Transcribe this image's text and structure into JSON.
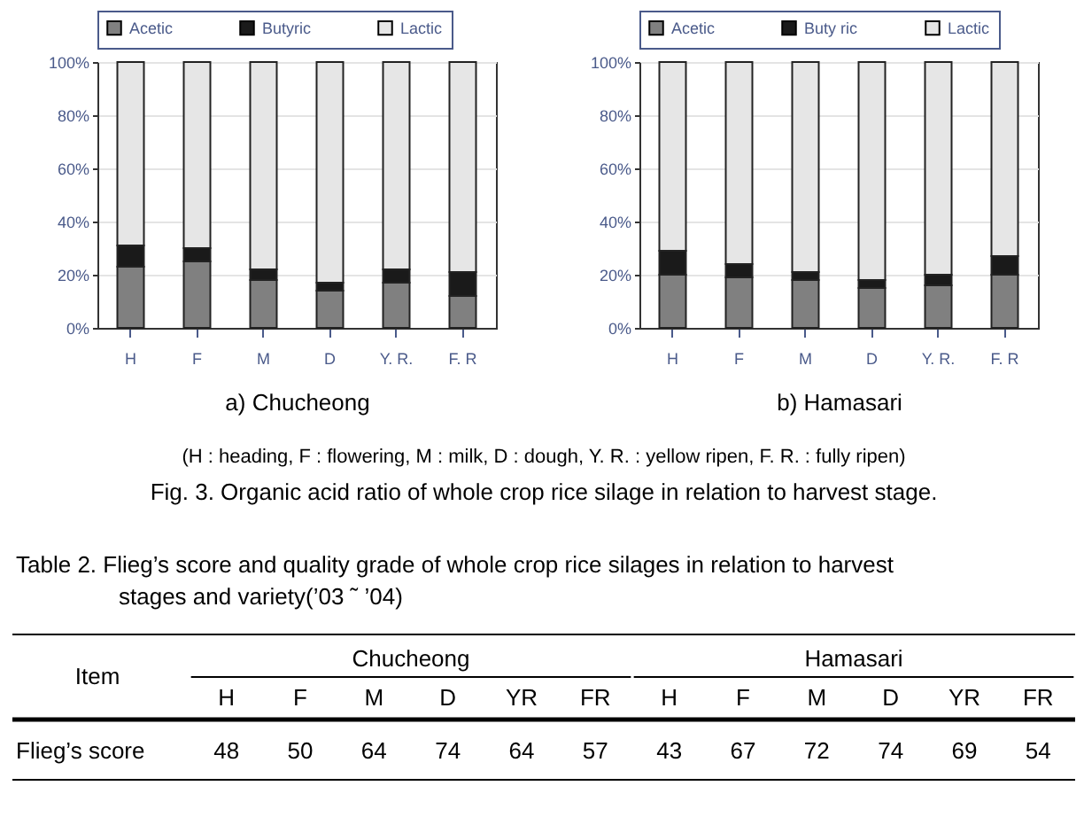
{
  "chart_data": [
    {
      "type": "bar",
      "stacked": true,
      "xlabel": "a)  Chucheong",
      "categories": [
        "H",
        "F",
        "M",
        "D",
        "Y. R.",
        "F. R"
      ],
      "legend": "top",
      "grid": "y",
      "ylim": [
        0,
        100
      ],
      "yticks": [
        {
          "value": 0,
          "label": "0%"
        },
        {
          "value": 20,
          "label": "20%"
        },
        {
          "value": 40,
          "label": "40%"
        },
        {
          "value": 60,
          "label": "60%"
        },
        {
          "value": 80,
          "label": "80%"
        },
        {
          "value": 100,
          "label": "100%"
        }
      ],
      "series": [
        {
          "name": "Acetic",
          "color": "#808080",
          "values": [
            23,
            25,
            18,
            14,
            17,
            12
          ]
        },
        {
          "name": "Butyric",
          "color": "#1a1a1a",
          "values": [
            8,
            5,
            4,
            3,
            5,
            9
          ]
        },
        {
          "name": "Lactic",
          "color": "#e6e6e6",
          "values": [
            69,
            70,
            78,
            83,
            78,
            79
          ]
        }
      ]
    },
    {
      "type": "bar",
      "stacked": true,
      "xlabel": "b)  Hamasari",
      "categories": [
        "H",
        "F",
        "M",
        "D",
        "Y. R.",
        "F. R"
      ],
      "legend": "top",
      "grid": "y",
      "ylim": [
        0,
        100
      ],
      "yticks": [
        {
          "value": 0,
          "label": "0%"
        },
        {
          "value": 20,
          "label": "20%"
        },
        {
          "value": 40,
          "label": "40%"
        },
        {
          "value": 60,
          "label": "60%"
        },
        {
          "value": 80,
          "label": "80%"
        },
        {
          "value": 100,
          "label": "100%"
        }
      ],
      "series": [
        {
          "name": "Acetic",
          "color": "#808080",
          "values": [
            20,
            19,
            18,
            15,
            16,
            20
          ]
        },
        {
          "name": "Buty ric",
          "color": "#1a1a1a",
          "values": [
            9,
            5,
            3,
            3,
            4,
            7
          ]
        },
        {
          "name": "Lactic",
          "color": "#e6e6e6",
          "values": [
            71,
            76,
            79,
            82,
            80,
            73
          ]
        }
      ]
    },
    {
      "type": "other",
      "title": "(H : heading, F : flowering, M : milk, D : dough, Y. R. : yellow ripen, F. R. : fully ripen)",
      "subtitle": "Fig. 3. Organic acid ratio of whole crop rice silage in relation to harvest stage.",
      "annotations": [
        "Table 2. Flieg’s score and quality grade of whole crop rice silages in relation to harvest stages and variety(’03 ˜ ’04)",
        "Item",
        "Chucheong",
        "Hamasari"
      ],
      "categories": [
        "H",
        "F",
        "M",
        "D",
        "YR",
        "FR",
        "H",
        "F",
        "M",
        "D",
        "YR",
        "FR"
      ],
      "ylabel": "Flieg’s score",
      "values": [
        48,
        50,
        64,
        74,
        64,
        57,
        43,
        67,
        72,
        74,
        69,
        54
      ],
      "data_labels": true
    }
  ]
}
